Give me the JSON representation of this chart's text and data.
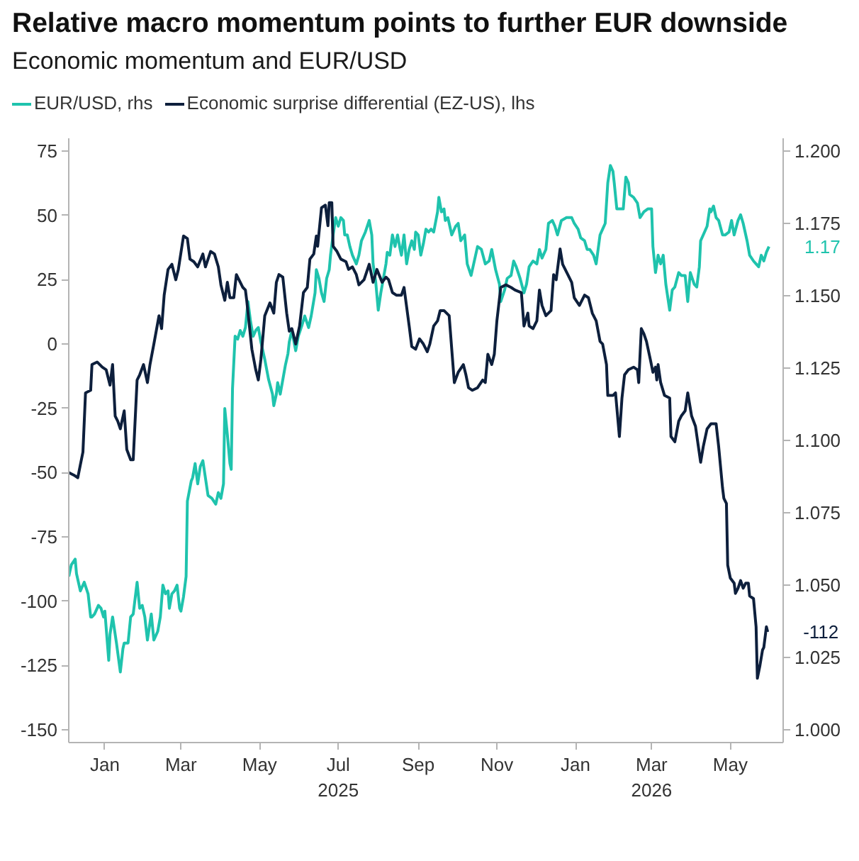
{
  "chart_data": {
    "type": "line",
    "title": "Relative macro momentum points to further EUR downside",
    "subtitle": "Economic momentum and EUR/USD",
    "legend": "top left",
    "xlim": [
      "2024-12-04",
      "2026-06-11"
    ],
    "xticks": [
      {
        "value": "2025-01-01",
        "label": "Jan"
      },
      {
        "value": "2025-03-01",
        "label": "Mar"
      },
      {
        "value": "2025-05-01",
        "label": "May"
      },
      {
        "value": "2025-07-01",
        "label": "Jul\n2025"
      },
      {
        "value": "2025-09-01",
        "label": "Sep"
      },
      {
        "value": "2025-11-01",
        "label": "Nov"
      },
      {
        "value": "2026-01-01",
        "label": "Jan"
      },
      {
        "value": "2026-03-01",
        "label": "Mar\n2026"
      },
      {
        "value": "2026-05-01",
        "label": "May"
      }
    ],
    "ylim": [
      -155,
      80
    ],
    "yticks": [
      -150,
      -125,
      -100,
      -75,
      -50,
      -25,
      0,
      25,
      50,
      75
    ],
    "y2lim": [
      0.9956,
      1.2044
    ],
    "y2ticks": [
      {
        "value": 1.0,
        "label": "1.000"
      },
      {
        "value": 1.025,
        "label": "1.025"
      },
      {
        "value": 1.05,
        "label": "1.050"
      },
      {
        "value": 1.075,
        "label": "1.075"
      },
      {
        "value": 1.1,
        "label": "1.100"
      },
      {
        "value": 1.125,
        "label": "1.125"
      },
      {
        "value": 1.15,
        "label": "1.150"
      },
      {
        "value": 1.175,
        "label": "1.175"
      },
      {
        "value": 1.2,
        "label": "1.200"
      }
    ],
    "series": [
      {
        "name": "EUR/USD, rhs",
        "color": "#1fc3ad",
        "axis": "y2",
        "x": [
          "2024-12-04",
          "2024-12-06",
          "2024-12-09",
          "2024-12-10",
          "2024-12-13",
          "2024-12-16",
          "2024-12-19",
          "2024-12-21",
          "2024-12-22",
          "2024-12-24",
          "2024-12-27",
          "2024-12-29",
          "2024-12-31",
          "2025-01-01",
          "2025-01-04",
          "2025-01-05",
          "2025-01-07",
          "2025-01-10",
          "2025-01-13",
          "2025-01-15",
          "2025-01-16",
          "2025-01-19",
          "2025-01-21",
          "2025-01-23",
          "2025-01-26",
          "2025-01-28",
          "2025-01-30",
          "2025-02-01",
          "2025-02-03",
          "2025-02-06",
          "2025-02-08",
          "2025-02-11",
          "2025-02-13",
          "2025-02-15",
          "2025-02-17",
          "2025-02-19",
          "2025-02-20",
          "2025-02-22",
          "2025-02-24",
          "2025-02-26",
          "2025-02-28",
          "2025-03-01",
          "2025-03-03",
          "2025-03-05",
          "2025-03-06",
          "2025-03-09",
          "2025-03-10",
          "2025-03-12",
          "2025-03-14",
          "2025-03-16",
          "2025-03-18",
          "2025-03-20",
          "2025-03-22",
          "2025-03-25",
          "2025-03-28",
          "2025-03-30",
          "2025-04-01",
          "2025-04-03",
          "2025-04-04",
          "2025-04-06",
          "2025-04-08",
          "2025-04-09",
          "2025-04-10",
          "2025-04-12",
          "2025-04-14",
          "2025-04-16",
          "2025-04-18",
          "2025-04-20",
          "2025-04-22",
          "2025-04-24",
          "2025-04-26",
          "2025-04-28",
          "2025-04-30",
          "2025-05-02",
          "2025-05-05",
          "2025-05-08",
          "2025-05-11",
          "2025-05-12",
          "2025-05-14",
          "2025-05-15",
          "2025-05-17",
          "2025-05-19",
          "2025-05-21",
          "2025-05-23",
          "2025-05-24",
          "2025-05-26",
          "2025-05-29",
          "2025-05-31",
          "2025-06-03",
          "2025-06-05",
          "2025-06-08",
          "2025-06-10",
          "2025-06-13",
          "2025-06-14",
          "2025-06-16",
          "2025-06-18",
          "2025-06-20",
          "2025-06-22",
          "2025-06-24",
          "2025-06-25",
          "2025-06-27",
          "2025-06-29",
          "2025-07-01",
          "2025-07-03",
          "2025-07-05",
          "2025-07-06",
          "2025-07-08",
          "2025-07-10",
          "2025-07-12",
          "2025-07-15",
          "2025-07-17",
          "2025-07-19",
          "2025-07-22",
          "2025-07-25",
          "2025-07-27",
          "2025-07-28",
          "2025-07-30",
          "2025-08-01",
          "2025-08-03",
          "2025-08-05",
          "2025-08-07",
          "2025-08-08",
          "2025-08-10",
          "2025-08-12",
          "2025-08-14",
          "2025-08-16",
          "2025-08-18",
          "2025-08-19",
          "2025-08-21",
          "2025-08-23",
          "2025-08-25",
          "2025-08-27",
          "2025-08-29",
          "2025-08-30",
          "2025-09-01",
          "2025-09-03",
          "2025-09-05",
          "2025-09-07",
          "2025-09-09",
          "2025-09-11",
          "2025-09-13",
          "2025-09-16",
          "2025-09-17",
          "2025-09-19",
          "2025-09-21",
          "2025-09-22",
          "2025-09-24",
          "2025-09-27",
          "2025-09-30",
          "2025-10-02",
          "2025-10-04",
          "2025-10-07",
          "2025-10-09",
          "2025-10-12",
          "2025-10-14",
          "2025-10-17",
          "2025-10-20",
          "2025-10-23",
          "2025-10-26",
          "2025-10-28",
          "2025-10-31",
          "2025-11-03",
          "2025-11-04",
          "2025-11-07",
          "2025-11-09",
          "2025-11-12",
          "2025-11-14",
          "2025-11-16",
          "2025-11-19",
          "2025-11-22",
          "2025-11-24",
          "2025-11-26",
          "2025-11-29",
          "2025-12-02",
          "2025-12-04",
          "2025-12-06",
          "2025-12-09",
          "2025-12-11",
          "2025-12-14",
          "2025-12-16",
          "2025-12-18",
          "2025-12-21",
          "2025-12-25",
          "2025-12-29",
          "2025-12-31",
          "2026-01-03",
          "2026-01-05",
          "2026-01-08",
          "2026-01-10",
          "2026-01-12",
          "2026-01-15",
          "2026-01-17",
          "2026-01-20",
          "2026-01-22",
          "2026-01-24",
          "2026-01-26",
          "2026-01-28",
          "2026-01-30",
          "2026-01-31",
          "2026-02-02",
          "2026-02-05",
          "2026-02-07",
          "2026-02-09",
          "2026-02-11",
          "2026-02-12",
          "2026-02-15",
          "2026-02-18",
          "2026-02-20",
          "2026-02-23",
          "2026-02-26",
          "2026-03-01",
          "2026-03-02",
          "2026-03-04",
          "2026-03-06",
          "2026-03-08",
          "2026-03-10",
          "2026-03-12",
          "2026-03-15",
          "2026-03-17",
          "2026-03-19",
          "2026-03-22",
          "2026-03-24",
          "2026-03-27",
          "2026-03-29",
          "2026-03-31",
          "2026-04-03",
          "2026-04-05",
          "2026-04-07",
          "2026-04-08",
          "2026-04-11",
          "2026-04-13",
          "2026-04-15",
          "2026-04-16",
          "2026-04-18",
          "2026-04-20",
          "2026-04-22",
          "2026-04-25",
          "2026-04-27",
          "2026-04-30",
          "2026-05-02",
          "2026-05-04",
          "2026-05-07",
          "2026-05-09",
          "2026-05-11",
          "2026-05-14",
          "2026-05-16",
          "2026-05-19",
          "2026-05-21",
          "2026-05-23",
          "2026-05-25",
          "2026-05-27",
          "2026-05-29",
          "2026-05-31"
        ],
        "values": [
          1.053,
          1.057,
          1.059,
          1.054,
          1.048,
          1.051,
          1.047,
          1.039,
          1.039,
          1.04,
          1.043,
          1.042,
          1.039,
          1.041,
          1.024,
          1.033,
          1.039,
          1.03,
          1.02,
          1.028,
          1.03,
          1.03,
          1.039,
          1.04,
          1.051,
          1.042,
          1.043,
          1.039,
          1.031,
          1.04,
          1.031,
          1.034,
          1.039,
          1.05,
          1.047,
          1.048,
          1.042,
          1.047,
          1.048,
          1.05,
          1.042,
          1.041,
          1.046,
          1.053,
          1.079,
          1.086,
          1.087,
          1.092,
          1.085,
          1.091,
          1.093,
          1.087,
          1.081,
          1.08,
          1.078,
          1.082,
          1.08,
          1.085,
          1.111,
          1.102,
          1.092,
          1.09,
          1.118,
          1.136,
          1.135,
          1.138,
          1.136,
          1.139,
          1.148,
          1.141,
          1.136,
          1.138,
          1.139,
          1.134,
          1.128,
          1.121,
          1.116,
          1.112,
          1.116,
          1.12,
          1.116,
          1.121,
          1.126,
          1.13,
          1.134,
          1.138,
          1.131,
          1.136,
          1.14,
          1.143,
          1.139,
          1.143,
          1.151,
          1.159,
          1.156,
          1.151,
          1.148,
          1.156,
          1.159,
          1.164,
          1.171,
          1.177,
          1.174,
          1.177,
          1.176,
          1.171,
          1.171,
          1.167,
          1.164,
          1.161,
          1.164,
          1.169,
          1.172,
          1.176,
          1.171,
          1.161,
          1.155,
          1.145,
          1.151,
          1.156,
          1.161,
          1.165,
          1.164,
          1.171,
          1.167,
          1.171,
          1.166,
          1.164,
          1.171,
          1.161,
          1.166,
          1.169,
          1.166,
          1.172,
          1.171,
          1.164,
          1.168,
          1.173,
          1.172,
          1.173,
          1.172,
          1.179,
          1.184,
          1.179,
          1.18,
          1.176,
          1.177,
          1.171,
          1.174,
          1.175,
          1.169,
          1.171,
          1.161,
          1.157,
          1.161,
          1.167,
          1.166,
          1.161,
          1.162,
          1.166,
          1.159,
          1.154,
          1.148,
          1.152,
          1.156,
          1.157,
          1.162,
          1.16,
          1.156,
          1.151,
          1.154,
          1.16,
          1.162,
          1.161,
          1.166,
          1.163,
          1.166,
          1.175,
          1.176,
          1.174,
          1.171,
          1.176,
          1.177,
          1.177,
          1.175,
          1.173,
          1.17,
          1.169,
          1.166,
          1.166,
          1.164,
          1.161,
          1.171,
          1.173,
          1.175,
          1.189,
          1.195,
          1.193,
          1.189,
          1.18,
          1.18,
          1.18,
          1.191,
          1.189,
          1.185,
          1.184,
          1.182,
          1.177,
          1.179,
          1.18,
          1.18,
          1.167,
          1.158,
          1.164,
          1.161,
          1.164,
          1.154,
          1.145,
          1.152,
          1.153,
          1.158,
          1.157,
          1.157,
          1.148,
          1.158,
          1.154,
          1.153,
          1.16,
          1.169,
          1.172,
          1.174,
          1.18,
          1.179,
          1.181,
          1.177,
          1.176,
          1.171,
          1.171,
          1.172,
          1.176,
          1.171,
          1.176,
          1.178,
          1.175,
          1.169,
          1.164,
          1.162,
          1.161,
          1.16,
          1.164,
          1.162,
          1.165,
          1.167
        ],
        "value_labels": [
          null,
          null,
          null,
          null,
          null,
          null,
          null,
          null,
          null,
          null,
          null,
          null,
          null,
          null,
          null,
          null,
          null,
          null,
          null,
          null,
          null,
          null,
          null,
          null,
          null,
          null,
          null,
          null,
          null,
          null,
          null,
          null,
          null,
          null,
          null,
          null,
          null,
          null,
          null,
          null,
          null,
          null,
          null,
          null,
          null,
          null,
          null,
          null,
          null,
          null,
          null,
          null,
          null,
          null,
          null,
          null,
          null,
          null,
          null,
          null,
          null,
          null,
          null,
          null,
          null,
          null,
          null,
          null,
          null,
          null,
          null,
          null,
          null,
          null,
          null,
          null,
          null,
          null,
          null,
          null,
          null,
          null,
          null,
          null,
          null,
          null,
          null,
          null,
          null,
          null,
          null,
          null,
          null,
          null,
          null,
          null,
          null,
          null,
          null,
          null,
          null,
          null,
          null,
          null,
          null,
          null,
          null,
          null,
          null,
          null,
          null,
          null,
          null,
          null,
          null,
          null,
          null,
          null,
          null,
          null,
          null,
          null,
          null,
          null,
          null,
          null,
          null,
          null,
          null,
          null,
          null,
          null,
          null,
          null,
          null,
          null,
          null,
          null,
          null,
          null,
          null,
          null,
          null,
          null,
          null,
          null,
          null,
          null,
          null,
          null,
          null,
          null,
          null,
          null,
          null,
          null,
          null,
          null,
          null,
          null,
          null,
          null,
          null,
          null,
          null,
          null,
          null,
          null,
          null,
          null,
          null,
          null,
          null,
          null,
          null,
          null,
          null,
          null,
          null,
          null,
          null,
          null,
          null,
          null,
          null,
          null,
          null,
          null,
          null,
          null,
          null,
          null,
          null,
          null,
          null,
          null,
          null,
          null,
          null,
          null,
          null,
          null,
          null,
          null,
          null,
          null,
          null,
          null,
          null,
          null,
          null,
          null,
          null,
          null,
          null,
          null,
          null,
          null,
          null,
          null,
          null,
          null,
          null,
          null,
          null,
          null,
          null,
          null,
          null,
          null,
          null,
          null,
          null,
          null,
          null,
          null,
          null,
          null,
          null,
          null,
          null,
          null,
          null,
          null,
          null,
          null,
          null,
          null,
          null,
          null,
          null,
          null,
          "1.17"
        ]
      },
      {
        "name": "Economic surprise differential (EZ-US), lhs",
        "color": "#0d1f3c",
        "x": [
          "2024-12-04",
          "2024-12-08",
          "2024-12-11",
          "2024-12-13",
          "2024-12-15",
          "2024-12-17",
          "2024-12-21",
          "2024-12-22",
          "2024-12-26",
          "2024-12-30",
          "2025-01-02",
          "2025-01-05",
          "2025-01-07",
          "2025-01-09",
          "2025-01-11",
          "2025-01-13",
          "2025-01-16",
          "2025-01-18",
          "2025-01-21",
          "2025-01-23",
          "2025-01-26",
          "2025-01-28",
          "2025-01-31",
          "2025-02-03",
          "2025-02-05",
          "2025-02-08",
          "2025-02-12",
          "2025-02-14",
          "2025-02-16",
          "2025-02-19",
          "2025-02-22",
          "2025-02-25",
          "2025-02-27",
          "2025-03-03",
          "2025-03-06",
          "2025-03-08",
          "2025-03-11",
          "2025-03-14",
          "2025-03-18",
          "2025-03-20",
          "2025-03-24",
          "2025-03-27",
          "2025-03-30",
          "2025-04-01",
          "2025-04-04",
          "2025-04-06",
          "2025-04-08",
          "2025-04-11",
          "2025-04-13",
          "2025-04-15",
          "2025-04-18",
          "2025-04-20",
          "2025-04-21",
          "2025-04-25",
          "2025-04-28",
          "2025-04-30",
          "2025-05-02",
          "2025-05-05",
          "2025-05-09",
          "2025-05-12",
          "2025-05-14",
          "2025-05-16",
          "2025-05-19",
          "2025-05-22",
          "2025-05-24",
          "2025-05-26",
          "2025-05-29",
          "2025-06-01",
          "2025-06-04",
          "2025-06-07",
          "2025-06-09",
          "2025-06-12",
          "2025-06-14",
          "2025-06-15",
          "2025-06-18",
          "2025-06-21",
          "2025-06-23",
          "2025-06-24",
          "2025-06-26",
          "2025-06-27",
          "2025-06-30",
          "2025-07-03",
          "2025-07-07",
          "2025-07-09",
          "2025-07-12",
          "2025-07-15",
          "2025-07-17",
          "2025-07-21",
          "2025-07-25",
          "2025-07-28",
          "2025-07-31",
          "2025-08-04",
          "2025-08-07",
          "2025-08-09",
          "2025-08-12",
          "2025-08-15",
          "2025-08-19",
          "2025-08-21",
          "2025-08-25",
          "2025-08-27",
          "2025-08-30",
          "2025-09-02",
          "2025-09-05",
          "2025-09-08",
          "2025-09-10",
          "2025-09-13",
          "2025-09-16",
          "2025-09-18",
          "2025-09-21",
          "2025-09-25",
          "2025-09-27",
          "2025-09-29",
          "2025-10-02",
          "2025-10-06",
          "2025-10-08",
          "2025-10-10",
          "2025-10-13",
          "2025-10-17",
          "2025-10-21",
          "2025-10-23",
          "2025-10-25",
          "2025-10-28",
          "2025-10-30",
          "2025-11-01",
          "2025-11-04",
          "2025-11-08",
          "2025-11-12",
          "2025-11-15",
          "2025-11-20",
          "2025-11-22",
          "2025-11-25",
          "2025-11-26",
          "2025-11-29",
          "2025-12-02",
          "2025-12-04",
          "2025-12-06",
          "2025-12-09",
          "2025-12-13",
          "2025-12-15",
          "2025-12-17",
          "2025-12-20",
          "2025-12-22",
          "2025-12-26",
          "2025-12-29",
          "2025-12-31",
          "2026-01-04",
          "2026-01-08",
          "2026-01-11",
          "2026-01-14",
          "2026-01-17",
          "2026-01-20",
          "2026-01-22",
          "2026-01-25",
          "2026-01-26",
          "2026-01-30",
          "2026-02-01",
          "2026-02-04",
          "2026-02-06",
          "2026-02-08",
          "2026-02-11",
          "2026-02-15",
          "2026-02-18",
          "2026-02-19",
          "2026-02-21",
          "2026-02-23",
          "2026-02-25",
          "2026-02-28",
          "2026-03-02",
          "2026-03-04",
          "2026-03-05",
          "2026-03-06",
          "2026-03-08",
          "2026-03-11",
          "2026-03-15",
          "2026-03-16",
          "2026-03-19",
          "2026-03-22",
          "2026-03-24",
          "2026-03-27",
          "2026-03-29",
          "2026-04-01",
          "2026-04-04",
          "2026-04-06",
          "2026-04-08",
          "2026-04-10",
          "2026-04-13",
          "2026-04-16",
          "2026-04-20",
          "2026-04-22",
          "2026-04-25",
          "2026-04-26",
          "2026-04-28",
          "2026-04-29",
          "2026-05-01",
          "2026-05-04",
          "2026-05-05",
          "2026-05-07",
          "2026-05-09",
          "2026-05-11",
          "2026-05-13",
          "2026-05-15",
          "2026-05-16",
          "2026-05-19",
          "2026-05-21",
          "2026-05-22",
          "2026-05-24",
          "2026-05-26",
          "2026-05-27",
          "2026-05-29",
          "2026-05-30"
        ],
        "values": [
          -50,
          -51,
          -52,
          -47,
          -42,
          -19,
          -18,
          -8,
          -7,
          -9,
          -10,
          -16,
          -8,
          -28,
          -30,
          -33,
          -26,
          -41,
          -45,
          -45,
          -14,
          -12,
          -8,
          -15,
          -8,
          0,
          11,
          6,
          19,
          29,
          31,
          25,
          29,
          42,
          41,
          33,
          32,
          30,
          35,
          30,
          36,
          35,
          30,
          23,
          17,
          24,
          18,
          18,
          27,
          25,
          22,
          21,
          17,
          -2,
          -10,
          -14,
          -6,
          11,
          16,
          12,
          24,
          27,
          26,
          12,
          5,
          6,
          0,
          7,
          20,
          22,
          33,
          35,
          42,
          38,
          53,
          54,
          46,
          55,
          55,
          38,
          36,
          33,
          32,
          29,
          30,
          27,
          23,
          25,
          31,
          24,
          29,
          24,
          26,
          25,
          20,
          19,
          19,
          22,
          7,
          -1,
          -2,
          2,
          0,
          -3,
          0,
          7,
          9,
          13,
          13,
          11,
          -2,
          -15,
          -11,
          -8,
          -12,
          -17,
          -18,
          -17,
          -14,
          -15,
          -4,
          -8,
          -4,
          9,
          22,
          23,
          22,
          21,
          20,
          7,
          12,
          7,
          6,
          9,
          21,
          15,
          11,
          13,
          27,
          25,
          37,
          31,
          27,
          24,
          18,
          15,
          19,
          18,
          12,
          9,
          1,
          0,
          -8,
          -20,
          -20,
          -19,
          -36,
          -21,
          -12,
          -10,
          -9,
          -10,
          -15,
          6,
          4,
          1,
          -6,
          -11,
          -9,
          -14,
          -8,
          -15,
          -20,
          -21,
          -36,
          -38,
          -30,
          -28,
          -26,
          -19,
          -28,
          -32,
          -39,
          -46,
          -40,
          -33,
          -31,
          -31,
          -40,
          -56,
          -60,
          -62,
          -86,
          -91,
          -93,
          -97,
          -95,
          -92,
          -95,
          -93,
          -93,
          -98,
          -99,
          -110,
          -130,
          -125,
          -119,
          -118,
          -110,
          -112
        ],
        "value_labels": [
          null,
          null,
          null,
          null,
          null,
          null,
          null,
          null,
          null,
          null,
          null,
          null,
          null,
          null,
          null,
          null,
          null,
          null,
          null,
          null,
          null,
          null,
          null,
          null,
          null,
          null,
          null,
          null,
          null,
          null,
          null,
          null,
          null,
          null,
          null,
          null,
          null,
          null,
          null,
          null,
          null,
          null,
          null,
          null,
          null,
          null,
          null,
          null,
          null,
          null,
          null,
          null,
          null,
          null,
          null,
          null,
          null,
          null,
          null,
          null,
          null,
          null,
          null,
          null,
          null,
          null,
          null,
          null,
          null,
          null,
          null,
          null,
          null,
          null,
          null,
          null,
          null,
          null,
          null,
          null,
          null,
          null,
          null,
          null,
          null,
          null,
          null,
          null,
          null,
          null,
          null,
          null,
          null,
          null,
          null,
          null,
          null,
          null,
          null,
          null,
          null,
          null,
          null,
          null,
          null,
          null,
          null,
          null,
          null,
          null,
          null,
          null,
          null,
          null,
          null,
          null,
          null,
          null,
          null,
          null,
          null,
          null,
          null,
          null,
          null,
          null,
          null,
          null,
          null,
          null,
          null,
          null,
          null,
          null,
          null,
          null,
          null,
          null,
          null,
          null,
          null,
          null,
          null,
          null,
          null,
          null,
          null,
          null,
          null,
          null,
          null,
          null,
          null,
          null,
          null,
          null,
          null,
          null,
          null,
          null,
          null,
          null,
          null,
          null,
          null,
          null,
          null,
          null,
          null,
          null,
          null,
          null,
          null,
          null,
          null,
          null,
          null,
          null,
          null,
          null,
          null,
          null,
          null,
          null,
          null,
          null,
          null,
          null,
          null,
          null,
          null,
          null,
          null,
          null,
          null,
          null,
          null,
          null,
          null,
          null,
          null,
          null,
          null,
          null,
          null,
          null,
          null,
          null,
          null,
          "-112"
        ]
      }
    ]
  }
}
